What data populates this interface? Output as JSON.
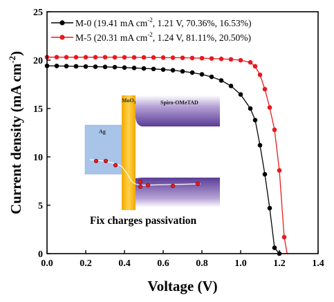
{
  "chart_data": {
    "type": "line",
    "xlabel": "Voltage (V)",
    "ylabel": "Current density (mA cm",
    "ylabel_sup": "-2",
    "ylabel_end": ")",
    "xlim": [
      0.0,
      1.4
    ],
    "ylim": [
      0,
      25
    ],
    "xticks": [
      "0.0",
      "0.2",
      "0.4",
      "0.6",
      "0.8",
      "1.0",
      "1.2",
      "1.4"
    ],
    "yticks": [
      "0",
      "5",
      "10",
      "15",
      "20",
      "25"
    ],
    "legend_position": "top-right",
    "series": [
      {
        "name": "M-0",
        "legend_params": "(19.41 mA cm",
        "legend_sup": "-2",
        "legend_rest": ", 1.21 V, 70.36%, 16.53%)",
        "color": "#000000",
        "x": [
          0.0,
          0.05,
          0.1,
          0.15,
          0.2,
          0.25,
          0.3,
          0.35,
          0.4,
          0.45,
          0.5,
          0.55,
          0.6,
          0.65,
          0.7,
          0.75,
          0.8,
          0.85,
          0.9,
          0.95,
          1.0,
          1.05,
          1.075,
          1.1,
          1.125,
          1.15,
          1.175,
          1.2,
          1.21
        ],
        "y": [
          19.41,
          19.4,
          19.38,
          19.36,
          19.34,
          19.32,
          19.3,
          19.27,
          19.23,
          19.19,
          19.14,
          19.09,
          19.02,
          18.95,
          18.84,
          18.71,
          18.53,
          18.27,
          17.9,
          17.33,
          16.45,
          15.0,
          13.8,
          11.2,
          8.2,
          4.7,
          0.6,
          0.0,
          0.0
        ]
      },
      {
        "name": "M-5",
        "legend_params": "(20.31 mA cm",
        "legend_sup": "-2",
        "legend_rest": ", 1.24 V, 81.11%, 20.50%)",
        "color": "#e8191e",
        "x": [
          0.0,
          0.05,
          0.1,
          0.15,
          0.2,
          0.25,
          0.3,
          0.35,
          0.4,
          0.45,
          0.5,
          0.55,
          0.6,
          0.65,
          0.7,
          0.75,
          0.8,
          0.85,
          0.9,
          0.95,
          1.0,
          1.05,
          1.075,
          1.1,
          1.125,
          1.15,
          1.175,
          1.2,
          1.225,
          1.24
        ],
        "y": [
          20.31,
          20.31,
          20.3,
          20.3,
          20.3,
          20.3,
          20.3,
          20.29,
          20.29,
          20.28,
          20.28,
          20.27,
          20.26,
          20.25,
          20.24,
          20.22,
          20.2,
          20.17,
          20.13,
          20.08,
          19.99,
          19.77,
          19.36,
          18.48,
          17.0,
          15.1,
          12.8,
          8.6,
          1.7,
          0.0
        ]
      }
    ]
  },
  "inset": {
    "ag_label": "Ag",
    "moo_label": "MoO",
    "moo_sub": "3",
    "spiro_label": "Spiro-OMeTAD",
    "caption": "Fix charges passivation"
  }
}
